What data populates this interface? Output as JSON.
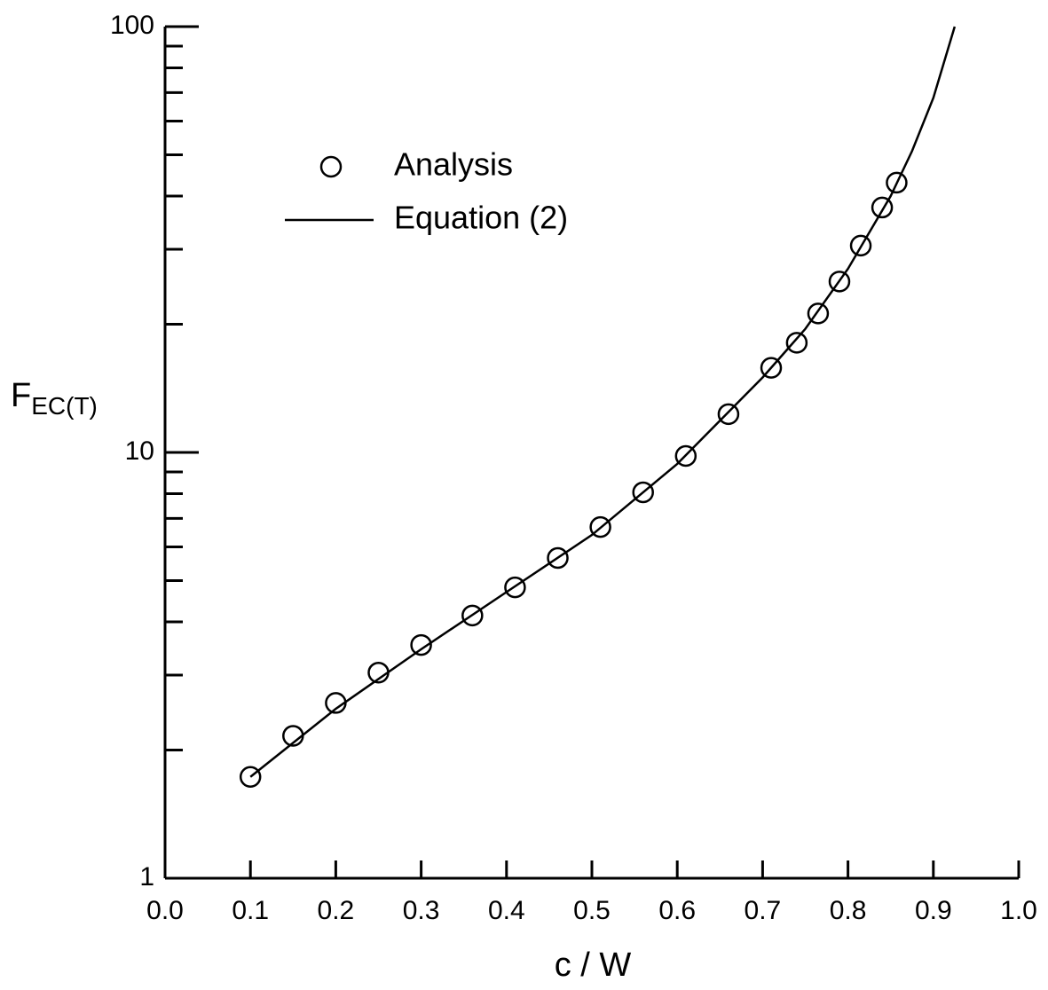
{
  "chart_data": {
    "type": "scatter-line",
    "xlabel": "c / W",
    "ylabel": "F",
    "ylabel_subscript": "EC(T)",
    "xlim": [
      0.0,
      1.0
    ],
    "xticks": [
      {
        "value": 0.0,
        "label": "0.0"
      },
      0.1,
      0.2,
      0.3,
      0.4,
      0.5,
      0.6,
      0.7,
      0.8,
      0.9,
      {
        "value": 1.0,
        "label": "1.0"
      }
    ],
    "ylim": [
      1,
      100
    ],
    "yticks": [
      1,
      10,
      100
    ],
    "log_y": true,
    "minor_ticks": true,
    "legend": "upper-left",
    "series": [
      {
        "name": "Analysis",
        "kind": "markers",
        "color": "#000000",
        "x": [
          0.1,
          0.15,
          0.2,
          0.25,
          0.3,
          0.36,
          0.41,
          0.46,
          0.51,
          0.56,
          0.61,
          0.66,
          0.71,
          0.74,
          0.765,
          0.79,
          0.815,
          0.84,
          0.857
        ],
        "values": [
          1.73,
          2.16,
          2.58,
          3.04,
          3.53,
          4.14,
          4.82,
          5.65,
          6.68,
          8.06,
          9.81,
          12.3,
          15.8,
          18.1,
          21.2,
          25.2,
          30.6,
          37.6,
          43.0
        ]
      },
      {
        "name": "Equation (2)",
        "kind": "line",
        "color": "#000000",
        "x": [
          0.1,
          0.2,
          0.3,
          0.4,
          0.5,
          0.6,
          0.7,
          0.75,
          0.8,
          0.85,
          0.875,
          0.9,
          0.925
        ],
        "values": [
          1.73,
          2.5,
          3.45,
          4.7,
          6.4,
          9.4,
          15.0,
          19.5,
          27.0,
          40.0,
          51.0,
          68.0,
          100.0
        ]
      }
    ]
  }
}
